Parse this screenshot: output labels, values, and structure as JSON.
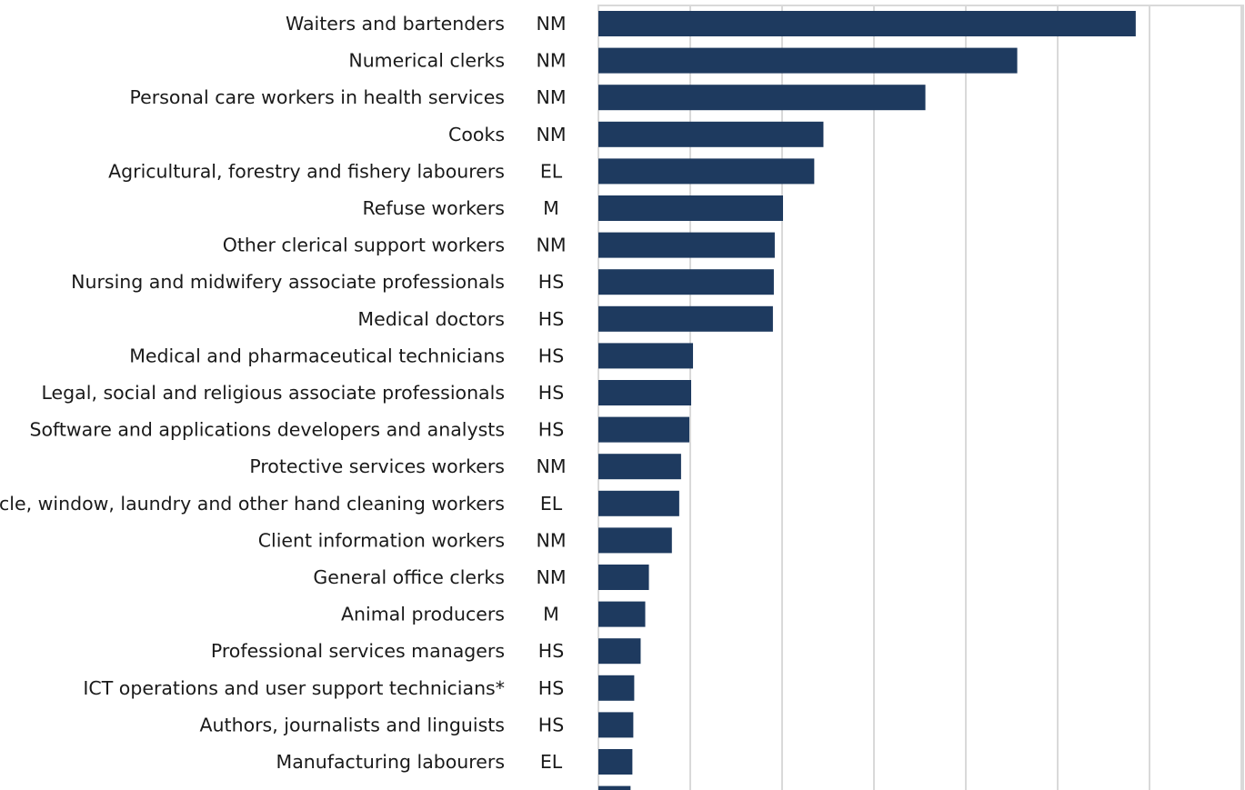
{
  "chart_data": {
    "type": "bar",
    "orientation": "horizontal",
    "bar_color": "#1e3a5f",
    "grid": true,
    "grid_color": "#d9d9d9",
    "xlim": [
      0,
      7
    ],
    "categories": [
      {
        "label": "Waiters and bartenders",
        "group": "NM",
        "value": 5.85
      },
      {
        "label": "Numerical clerks",
        "group": "NM",
        "value": 4.56
      },
      {
        "label": "Personal care workers in health services",
        "group": "NM",
        "value": 3.56
      },
      {
        "label": "Cooks",
        "group": "NM",
        "value": 2.45
      },
      {
        "label": "Agricultural, forestry and fishery labourers",
        "group": "EL",
        "value": 2.35
      },
      {
        "label": "Refuse workers",
        "group": "M",
        "value": 2.01
      },
      {
        "label": "Other clerical support workers",
        "group": "NM",
        "value": 1.92
      },
      {
        "label": "Nursing and midwifery associate professionals",
        "group": "HS",
        "value": 1.91
      },
      {
        "label": "Medical doctors",
        "group": "HS",
        "value": 1.9
      },
      {
        "label": "Medical and pharmaceutical technicians",
        "group": "HS",
        "value": 1.03
      },
      {
        "label": "Legal, social and religious associate professionals",
        "group": "HS",
        "value": 1.01
      },
      {
        "label": "Software and applications developers and analysts",
        "group": "HS",
        "value": 0.99
      },
      {
        "label": "Protective services workers",
        "group": "NM",
        "value": 0.9
      },
      {
        "label": "Vehicle, window, laundry and other hand cleaning workers",
        "group": "EL",
        "value": 0.88
      },
      {
        "label": "Client information workers",
        "group": "NM",
        "value": 0.8
      },
      {
        "label": "General office clerks",
        "group": "NM",
        "value": 0.55
      },
      {
        "label": "Animal producers",
        "group": "M",
        "value": 0.51
      },
      {
        "label": "Professional services managers",
        "group": "HS",
        "value": 0.46
      },
      {
        "label": "ICT operations and user support technicians*",
        "group": "HS",
        "value": 0.39
      },
      {
        "label": "Authors, journalists and linguists",
        "group": "HS",
        "value": 0.38
      },
      {
        "label": "Manufacturing labourers",
        "group": "EL",
        "value": 0.37
      },
      {
        "label": "",
        "group": "",
        "value": 0.35
      }
    ]
  }
}
